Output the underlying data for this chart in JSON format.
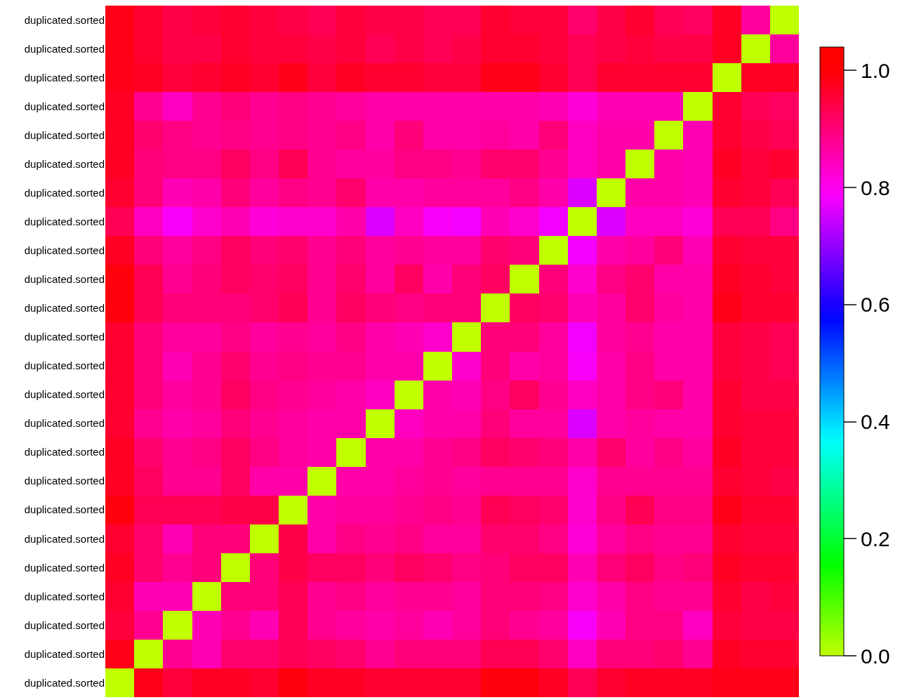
{
  "chart_data": {
    "type": "heatmap",
    "categories": [
      null,
      null,
      null,
      null,
      null,
      null,
      null,
      null,
      null,
      null,
      null,
      null,
      null,
      null,
      null,
      null,
      null,
      null,
      null,
      null,
      null,
      null,
      null,
      null
    ],
    "y_categories": [
      "duplicated.sorted",
      "duplicated.sorted",
      "duplicated.sorted",
      "duplicated.sorted",
      "duplicated.sorted",
      "duplicated.sorted",
      "duplicated.sorted",
      "duplicated.sorted",
      "duplicated.sorted",
      "duplicated.sorted",
      "duplicated.sorted",
      "duplicated.sorted",
      "duplicated.sorted",
      "duplicated.sorted",
      "duplicated.sorted",
      "duplicated.sorted",
      "duplicated.sorted",
      "duplicated.sorted",
      "duplicated.sorted",
      "duplicated.sorted",
      "duplicated.sorted",
      "duplicated.sorted",
      "duplicated.sorted",
      "duplicated.sorted"
    ],
    "cells": [
      [
        0.98,
        0.96,
        0.94,
        0.95,
        0.96,
        0.95,
        0.94,
        0.93,
        0.95,
        0.94,
        0.94,
        0.93,
        0.93,
        0.96,
        0.95,
        0.95,
        0.91,
        0.94,
        0.96,
        0.93,
        0.92,
        0.97,
        0.87,
        0
      ],
      [
        0.98,
        0.96,
        0.94,
        0.94,
        0.96,
        0.95,
        0.95,
        0.94,
        0.95,
        0.93,
        0.94,
        0.93,
        0.94,
        0.96,
        0.96,
        0.95,
        0.93,
        0.94,
        0.95,
        0.94,
        0.94,
        0.97,
        0,
        0.87
      ],
      [
        0.98,
        0.97,
        0.95,
        0.96,
        0.97,
        0.96,
        0.98,
        0.95,
        0.97,
        0.96,
        0.96,
        0.95,
        0.95,
        0.98,
        0.98,
        0.96,
        0.93,
        0.96,
        0.96,
        0.96,
        0.96,
        0,
        0.97,
        0.97
      ],
      [
        0.97,
        0.88,
        0.84,
        0.88,
        0.9,
        0.88,
        0.89,
        0.88,
        0.87,
        0.86,
        0.86,
        0.86,
        0.86,
        0.86,
        0.86,
        0.85,
        0.82,
        0.85,
        0.85,
        0.85,
        0,
        0.96,
        0.93,
        0.92
      ],
      [
        0.97,
        0.91,
        0.89,
        0.88,
        0.89,
        0.88,
        0.89,
        0.88,
        0.89,
        0.86,
        0.9,
        0.86,
        0.86,
        0.87,
        0.86,
        0.9,
        0.84,
        0.86,
        0.86,
        0,
        0.85,
        0.96,
        0.94,
        0.93
      ],
      [
        0.97,
        0.9,
        0.89,
        0.89,
        0.92,
        0.89,
        0.93,
        0.88,
        0.87,
        0.87,
        0.89,
        0.89,
        0.88,
        0.91,
        0.91,
        0.88,
        0.84,
        0.86,
        0,
        0.86,
        0.85,
        0.97,
        0.95,
        0.96
      ],
      [
        0.96,
        0.9,
        0.85,
        0.86,
        0.9,
        0.87,
        0.89,
        0.88,
        0.91,
        0.86,
        0.86,
        0.87,
        0.87,
        0.87,
        0.89,
        0.86,
        0.76,
        0,
        0.86,
        0.86,
        0.85,
        0.96,
        0.95,
        0.93
      ],
      [
        0.93,
        0.84,
        0.79,
        0.83,
        0.85,
        0.82,
        0.83,
        0.83,
        0.86,
        0.76,
        0.84,
        0.79,
        0.78,
        0.85,
        0.83,
        0.78,
        0,
        0.76,
        0.84,
        0.84,
        0.82,
        0.93,
        0.93,
        0.89
      ],
      [
        0.97,
        0.9,
        0.87,
        0.89,
        0.92,
        0.9,
        0.91,
        0.88,
        0.9,
        0.87,
        0.88,
        0.87,
        0.87,
        0.91,
        0.9,
        0,
        0.78,
        0.86,
        0.87,
        0.9,
        0.85,
        0.96,
        0.95,
        0.95
      ],
      [
        0.99,
        0.93,
        0.88,
        0.9,
        0.92,
        0.91,
        0.92,
        0.88,
        0.91,
        0.87,
        0.92,
        0.86,
        0.9,
        0.92,
        0,
        0.9,
        0.83,
        0.89,
        0.91,
        0.86,
        0.86,
        0.97,
        0.96,
        0.95
      ],
      [
        0.99,
        0.93,
        0.9,
        0.9,
        0.9,
        0.91,
        0.93,
        0.88,
        0.92,
        0.9,
        0.89,
        0.9,
        0.9,
        0,
        0.92,
        0.91,
        0.85,
        0.87,
        0.91,
        0.87,
        0.86,
        0.98,
        0.96,
        0.96
      ],
      [
        0.96,
        0.9,
        0.87,
        0.87,
        0.89,
        0.87,
        0.88,
        0.87,
        0.89,
        0.86,
        0.85,
        0.83,
        0,
        0.9,
        0.9,
        0.87,
        0.78,
        0.87,
        0.88,
        0.86,
        0.86,
        0.95,
        0.94,
        0.93
      ],
      [
        0.96,
        0.9,
        0.85,
        0.88,
        0.91,
        0.88,
        0.89,
        0.88,
        0.88,
        0.86,
        0.86,
        0,
        0.83,
        0.9,
        0.86,
        0.87,
        0.79,
        0.86,
        0.89,
        0.86,
        0.86,
        0.95,
        0.94,
        0.93
      ],
      [
        0.96,
        0.9,
        0.87,
        0.88,
        0.92,
        0.89,
        0.88,
        0.87,
        0.86,
        0.84,
        0,
        0.86,
        0.85,
        0.89,
        0.92,
        0.88,
        0.84,
        0.86,
        0.89,
        0.9,
        0.86,
        0.96,
        0.94,
        0.94
      ],
      [
        0.96,
        0.88,
        0.86,
        0.87,
        0.9,
        0.88,
        0.87,
        0.86,
        0.86,
        0,
        0.84,
        0.86,
        0.86,
        0.9,
        0.87,
        0.87,
        0.76,
        0.86,
        0.87,
        0.86,
        0.86,
        0.96,
        0.95,
        0.95
      ],
      [
        0.97,
        0.91,
        0.88,
        0.89,
        0.92,
        0.89,
        0.87,
        0.86,
        0,
        0.86,
        0.86,
        0.88,
        0.89,
        0.92,
        0.91,
        0.9,
        0.86,
        0.91,
        0.87,
        0.89,
        0.87,
        0.97,
        0.95,
        0.95
      ],
      [
        0.97,
        0.92,
        0.88,
        0.88,
        0.92,
        0.86,
        0.86,
        0,
        0.86,
        0.86,
        0.87,
        0.88,
        0.87,
        0.88,
        0.88,
        0.88,
        0.83,
        0.88,
        0.88,
        0.88,
        0.88,
        0.96,
        0.95,
        0.94
      ],
      [
        0.99,
        0.93,
        0.93,
        0.93,
        0.94,
        0.94,
        0,
        0.86,
        0.87,
        0.87,
        0.88,
        0.89,
        0.88,
        0.93,
        0.92,
        0.91,
        0.83,
        0.89,
        0.93,
        0.89,
        0.89,
        0.98,
        0.96,
        0.96
      ],
      [
        0.96,
        0.91,
        0.85,
        0.9,
        0.9,
        0,
        0.94,
        0.86,
        0.89,
        0.88,
        0.89,
        0.87,
        0.87,
        0.91,
        0.91,
        0.89,
        0.82,
        0.87,
        0.89,
        0.88,
        0.88,
        0.96,
        0.95,
        0.95
      ],
      [
        0.97,
        0.91,
        0.88,
        0.9,
        0,
        0.9,
        0.94,
        0.92,
        0.92,
        0.9,
        0.92,
        0.91,
        0.89,
        0.9,
        0.92,
        0.92,
        0.85,
        0.9,
        0.92,
        0.89,
        0.9,
        0.97,
        0.96,
        0.96
      ],
      [
        0.96,
        0.85,
        0.85,
        0,
        0.9,
        0.9,
        0.93,
        0.88,
        0.89,
        0.87,
        0.88,
        0.88,
        0.87,
        0.9,
        0.9,
        0.89,
        0.83,
        0.86,
        0.89,
        0.88,
        0.88,
        0.96,
        0.94,
        0.95
      ],
      [
        0.95,
        0.88,
        0,
        0.85,
        0.88,
        0.85,
        0.93,
        0.88,
        0.87,
        0.86,
        0.87,
        0.85,
        0.87,
        0.9,
        0.88,
        0.87,
        0.79,
        0.85,
        0.89,
        0.89,
        0.84,
        0.95,
        0.94,
        0.94
      ],
      [
        0.98,
        0,
        0.88,
        0.85,
        0.91,
        0.91,
        0.93,
        0.92,
        0.91,
        0.88,
        0.9,
        0.9,
        0.9,
        0.93,
        0.93,
        0.91,
        0.84,
        0.9,
        0.9,
        0.91,
        0.88,
        0.97,
        0.96,
        0.96
      ],
      [
        0,
        0.98,
        0.95,
        0.97,
        0.97,
        0.96,
        0.99,
        0.97,
        0.97,
        0.96,
        0.96,
        0.96,
        0.96,
        0.99,
        0.99,
        0.97,
        0.93,
        0.96,
        0.97,
        0.97,
        0.97,
        0.98,
        0.98,
        0.98
      ]
    ],
    "clim": [
      0,
      1.04
    ],
    "cticks": [
      {
        "value": 0,
        "label": "0.0"
      },
      0.2,
      0.4,
      0.6,
      0.8,
      {
        "value": 1,
        "label": "1.0"
      }
    ]
  }
}
